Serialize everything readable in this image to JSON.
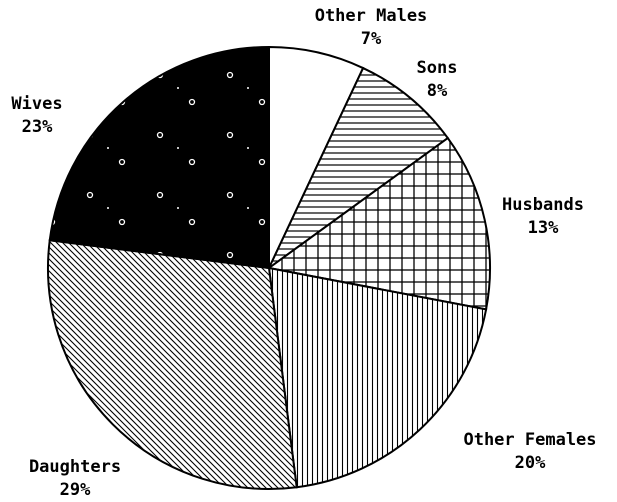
{
  "chart_data": {
    "type": "pie",
    "categories": [
      "Other Males",
      "Sons",
      "Husbands",
      "Other Females",
      "Daughters",
      "Wives"
    ],
    "values": [
      7,
      8,
      13,
      20,
      29,
      23
    ],
    "value_labels": [
      "7%",
      "8%",
      "13%",
      "20%",
      "29%",
      "23%"
    ],
    "patterns": [
      "none",
      "horizontal",
      "grid",
      "vertical",
      "diagonal",
      "dotted-black"
    ]
  }
}
